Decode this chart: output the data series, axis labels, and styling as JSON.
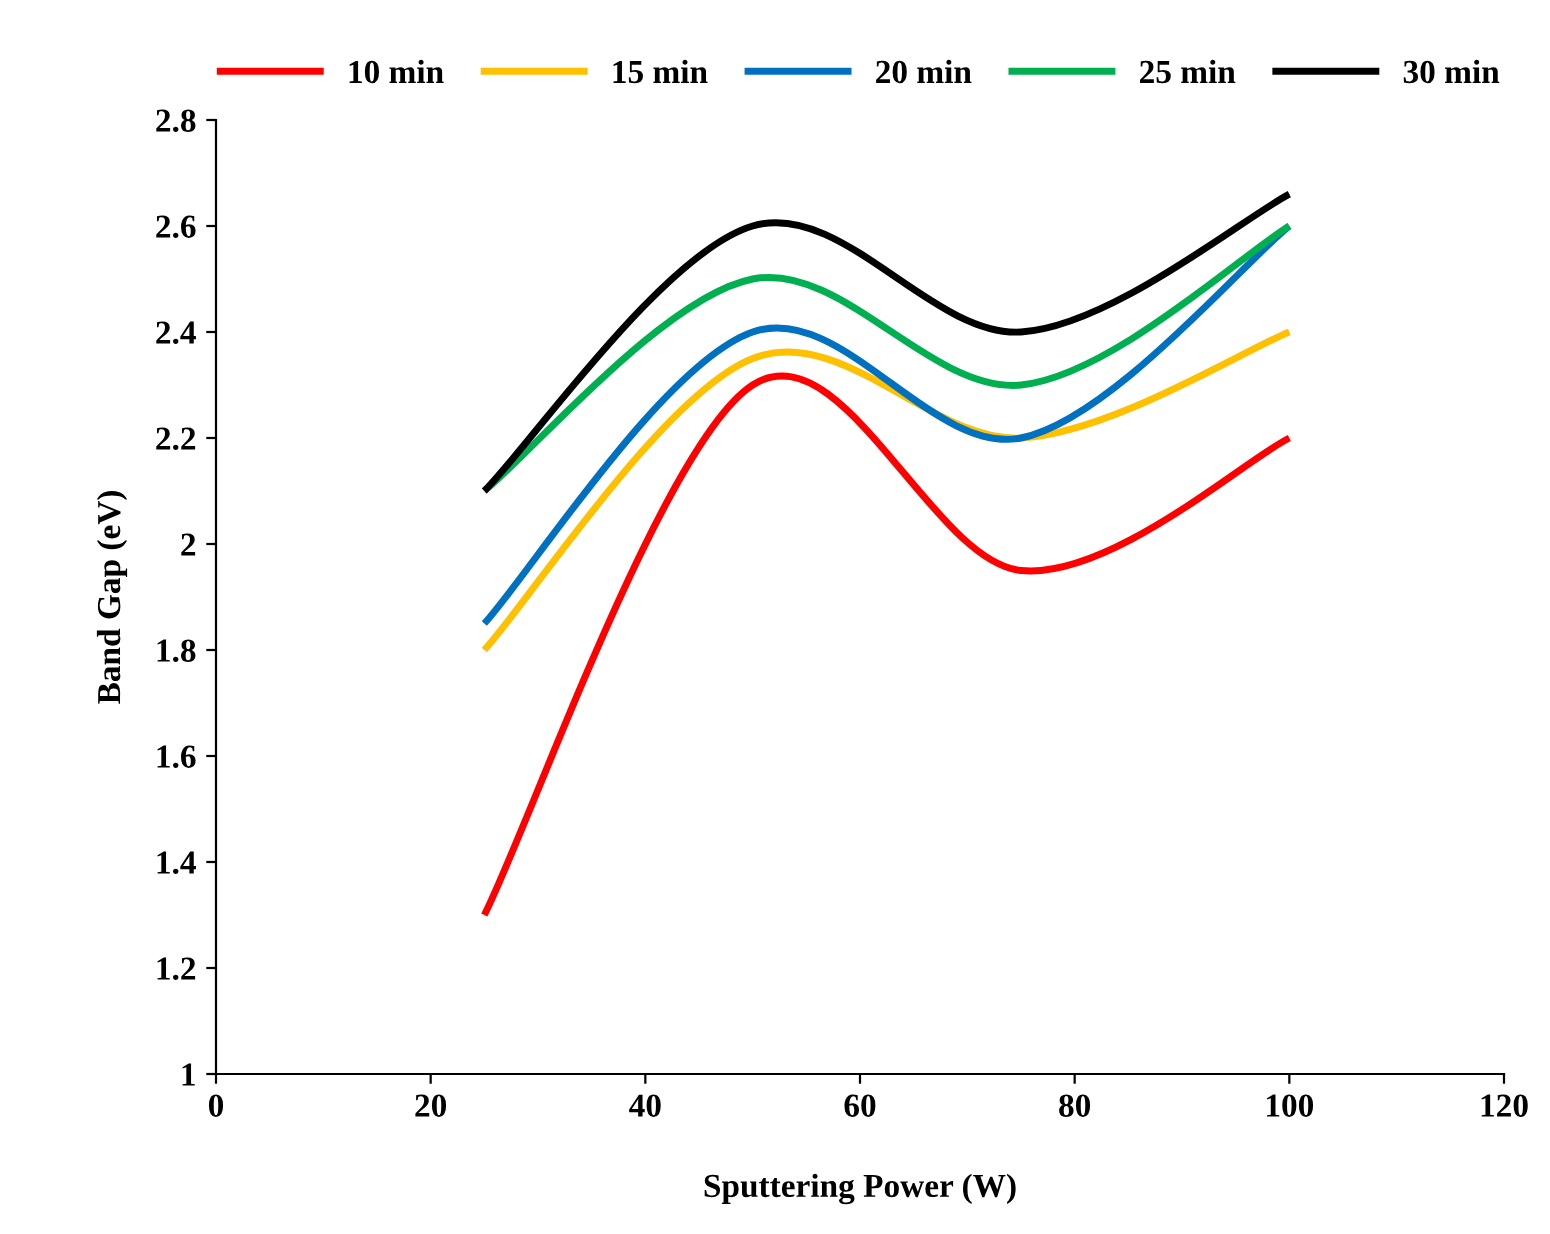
{
  "chart_data": {
    "type": "line",
    "xlabel": "Sputtering Power (W)",
    "ylabel": "Band Gap (eV)",
    "x": [
      25,
      50,
      75,
      100
    ],
    "series": [
      {
        "name": "10 min",
        "color": "#ff0000",
        "values": [
          1.3,
          2.3,
          1.95,
          2.2
        ]
      },
      {
        "name": "15 min",
        "color": "#ffc000",
        "values": [
          1.8,
          2.35,
          2.2,
          2.4
        ]
      },
      {
        "name": "20 min",
        "color": "#0070c0",
        "values": [
          1.85,
          2.4,
          2.2,
          2.6
        ]
      },
      {
        "name": "25 min",
        "color": "#00b050",
        "values": [
          2.1,
          2.5,
          2.3,
          2.6
        ]
      },
      {
        "name": "30 min",
        "color": "#000000",
        "values": [
          2.1,
          2.6,
          2.4,
          2.66
        ]
      }
    ],
    "xlim": [
      0,
      120
    ],
    "xticks": [
      0,
      20,
      40,
      60,
      80,
      100,
      120
    ],
    "ylim": [
      1,
      2.8
    ],
    "yticks": [
      1,
      1.2,
      1.4,
      1.6,
      1.8,
      2,
      2.2,
      2.4,
      2.6,
      2.8
    ],
    "grid": false,
    "legend": "top",
    "marker": "none",
    "line_style": "solid"
  }
}
